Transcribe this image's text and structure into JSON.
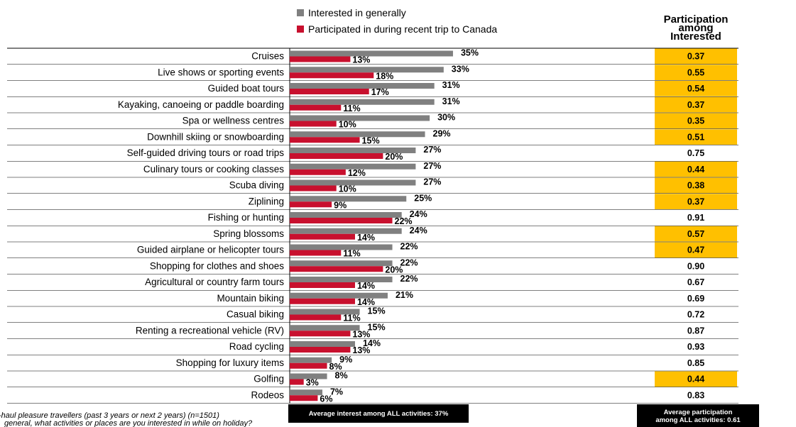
{
  "chart_data": {
    "type": "bar",
    "orientation": "horizontal",
    "legend": [
      {
        "name": "Interested in generally",
        "color": "#808080"
      },
      {
        "name": "Participated in during recent trip to Canada",
        "color": "#c8102e"
      }
    ],
    "legend_placement": "top",
    "categories": [
      "Cruises",
      "Live shows or sporting events",
      "Guided boat tours",
      "Kayaking, canoeing or paddle boarding",
      "Spa or wellness centres",
      "Downhill skiing or snowboarding",
      "Self-guided driving tours or road trips",
      "Culinary tours or cooking classes",
      "Scuba diving",
      "Ziplining",
      "Fishing or hunting",
      "Spring blossoms",
      "Guided airplane or helicopter tours",
      "Shopping for clothes and shoes",
      "Agricultural or country farm tours",
      "Mountain biking",
      "Casual biking",
      "Renting a recreational vehicle (RV)",
      "Road cycling",
      "Shopping for luxury items",
      "Golfing",
      "Rodeos"
    ],
    "series": [
      {
        "name": "Interested in generally",
        "values": [
          35,
          33,
          31,
          31,
          30,
          29,
          27,
          27,
          27,
          25,
          24,
          24,
          22,
          22,
          22,
          21,
          15,
          15,
          14,
          9,
          8,
          7
        ]
      },
      {
        "name": "Participated in during recent trip to Canada",
        "values": [
          13,
          18,
          17,
          11,
          10,
          15,
          20,
          12,
          10,
          9,
          22,
          14,
          11,
          20,
          14,
          14,
          11,
          13,
          13,
          8,
          3,
          6
        ]
      }
    ],
    "value_suffix": "%",
    "xlim": [
      0,
      40
    ],
    "grid": false,
    "participation": {
      "title_lines": [
        "Participation",
        "among",
        "Interested"
      ],
      "values": [
        "0.37",
        "0.55",
        "0.54",
        "0.37",
        "0.35",
        "0.51",
        "0.75",
        "0.44",
        "0.38",
        "0.37",
        "0.91",
        "0.57",
        "0.47",
        "0.90",
        "0.67",
        "0.69",
        "0.72",
        "0.87",
        "0.93",
        "0.85",
        "0.44",
        "0.83"
      ],
      "highlighted": [
        true,
        true,
        true,
        true,
        true,
        true,
        false,
        true,
        true,
        true,
        false,
        true,
        true,
        false,
        false,
        false,
        false,
        false,
        false,
        false,
        true,
        false
      ],
      "highlight_color": "#ffc000"
    },
    "average_interest_label": "Average interest among ALL activities: 37%",
    "average_participation_label_lines": [
      "Average participation",
      "among ALL activities: 0.61"
    ],
    "footnotes": [
      "-haul pleasure travellers (past 3 years or next 2 years) (n=1501)",
      "general, what activities or places are you interested in while on holiday?"
    ]
  }
}
